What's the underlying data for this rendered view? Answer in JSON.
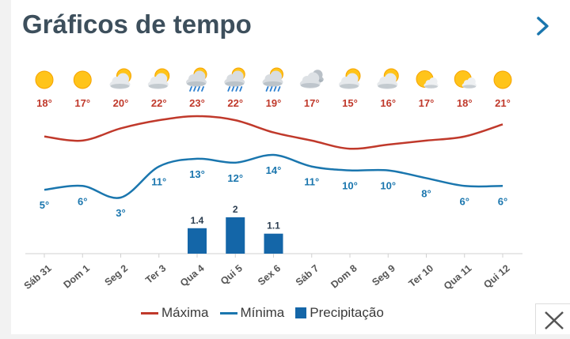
{
  "header": {
    "title": "Gráficos de tempo"
  },
  "legend": {
    "max_label": "Máxima",
    "min_label": "Mínima",
    "precip_label": "Precipitação"
  },
  "colors": {
    "max": "#c0392b",
    "min": "#1a76ae",
    "precip": "#1466a8",
    "axis": "#d0d0d0",
    "text": "#3a3a3a"
  },
  "chart_data": {
    "type": "line",
    "categories": [
      "Sáb 31",
      "Dom 1",
      "Seg 2",
      "Ter 3",
      "Qua 4",
      "Qui 5",
      "Sex 6",
      "Sáb 7",
      "Dom 8",
      "Seg 9",
      "Ter 10",
      "Qua 11",
      "Qui 12"
    ],
    "icons": [
      "sun-icon",
      "sun-icon",
      "partly-cloudy-icon",
      "partly-cloudy-icon",
      "rain-icon",
      "rain-icon",
      "rain-icon",
      "cloud-icon",
      "partly-cloudy-icon",
      "partly-cloudy-icon",
      "mostly-sunny-icon",
      "mostly-sunny-icon",
      "sun-icon"
    ],
    "series": [
      {
        "name": "Máxima",
        "values": [
          18,
          17,
          20,
          22,
          23,
          22,
          19,
          17,
          15,
          16,
          17,
          18,
          21
        ],
        "labels": [
          "18°",
          "17°",
          "20°",
          "22°",
          "23°",
          "22°",
          "19°",
          "17°",
          "15°",
          "16°",
          "17°",
          "18°",
          "21°"
        ]
      },
      {
        "name": "Mínima",
        "values": [
          5,
          6,
          3,
          11,
          13,
          12,
          14,
          11,
          10,
          10,
          8,
          6,
          6
        ],
        "labels": [
          "5°",
          "6°",
          "3°",
          "11°",
          "13°",
          "12°",
          "14°",
          "11°",
          "10°",
          "10°",
          "8°",
          "6°",
          "6°"
        ]
      },
      {
        "name": "Precipitação",
        "type": "bar",
        "values": [
          0,
          0,
          0,
          0,
          1.4,
          2,
          1.1,
          0,
          0,
          0,
          0,
          0,
          0
        ],
        "labels": [
          "",
          "",
          "",
          "",
          "1.4",
          "2",
          "1.1",
          "",
          "",
          "",
          "",
          "",
          ""
        ]
      }
    ]
  }
}
